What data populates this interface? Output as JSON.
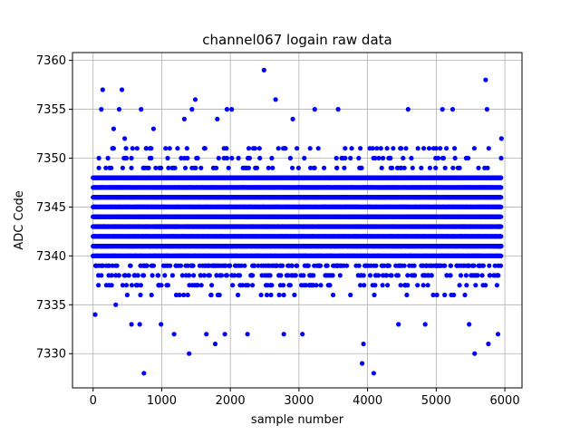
{
  "chart_data": {
    "type": "scatter",
    "title": "channel067 logain raw data",
    "xlabel": "sample number",
    "ylabel": "ADC Code",
    "xlim": [
      -300,
      6250
    ],
    "ylim": [
      7326.5,
      7360.8
    ],
    "xticks": [
      0,
      1000,
      2000,
      3000,
      4000,
      5000,
      6000
    ],
    "yticks": [
      7330,
      7335,
      7340,
      7345,
      7350,
      7355,
      7360
    ],
    "grid": true,
    "marker_color": "#0000ff",
    "n_samples": 5950,
    "sample_step": 20,
    "dense_band": {
      "levels": [
        7336,
        7337,
        7338,
        7339,
        7340,
        7341,
        7342,
        7343,
        7344,
        7345,
        7346,
        7347,
        7348,
        7349,
        7350,
        7351
      ],
      "weights": [
        2,
        4,
        6,
        9,
        11,
        14,
        16,
        17,
        17,
        16,
        14,
        11,
        8,
        5,
        3,
        2
      ]
    },
    "outliers": [
      {
        "x": 30,
        "y": 7334
      },
      {
        "x": 120,
        "y": 7355
      },
      {
        "x": 140,
        "y": 7357
      },
      {
        "x": 300,
        "y": 7353
      },
      {
        "x": 330,
        "y": 7335
      },
      {
        "x": 380,
        "y": 7355
      },
      {
        "x": 420,
        "y": 7357
      },
      {
        "x": 460,
        "y": 7352
      },
      {
        "x": 560,
        "y": 7333
      },
      {
        "x": 680,
        "y": 7333
      },
      {
        "x": 700,
        "y": 7355
      },
      {
        "x": 740,
        "y": 7328
      },
      {
        "x": 880,
        "y": 7353
      },
      {
        "x": 990,
        "y": 7333
      },
      {
        "x": 1180,
        "y": 7332
      },
      {
        "x": 1330,
        "y": 7354
      },
      {
        "x": 1400,
        "y": 7330
      },
      {
        "x": 1440,
        "y": 7355
      },
      {
        "x": 1490,
        "y": 7356
      },
      {
        "x": 1650,
        "y": 7332
      },
      {
        "x": 1780,
        "y": 7331
      },
      {
        "x": 1810,
        "y": 7354
      },
      {
        "x": 1920,
        "y": 7332
      },
      {
        "x": 1950,
        "y": 7355
      },
      {
        "x": 2020,
        "y": 7355
      },
      {
        "x": 2250,
        "y": 7332
      },
      {
        "x": 2490,
        "y": 7359
      },
      {
        "x": 2660,
        "y": 7356
      },
      {
        "x": 2780,
        "y": 7332
      },
      {
        "x": 2910,
        "y": 7354
      },
      {
        "x": 3050,
        "y": 7332
      },
      {
        "x": 3230,
        "y": 7355
      },
      {
        "x": 3570,
        "y": 7355
      },
      {
        "x": 3920,
        "y": 7329
      },
      {
        "x": 3940,
        "y": 7331
      },
      {
        "x": 4090,
        "y": 7328
      },
      {
        "x": 4450,
        "y": 7333
      },
      {
        "x": 4590,
        "y": 7355
      },
      {
        "x": 4840,
        "y": 7333
      },
      {
        "x": 5090,
        "y": 7355
      },
      {
        "x": 5240,
        "y": 7355
      },
      {
        "x": 5480,
        "y": 7333
      },
      {
        "x": 5560,
        "y": 7330
      },
      {
        "x": 5720,
        "y": 7358
      },
      {
        "x": 5740,
        "y": 7355
      },
      {
        "x": 5760,
        "y": 7331
      },
      {
        "x": 5900,
        "y": 7332
      },
      {
        "x": 5950,
        "y": 7352
      }
    ]
  }
}
